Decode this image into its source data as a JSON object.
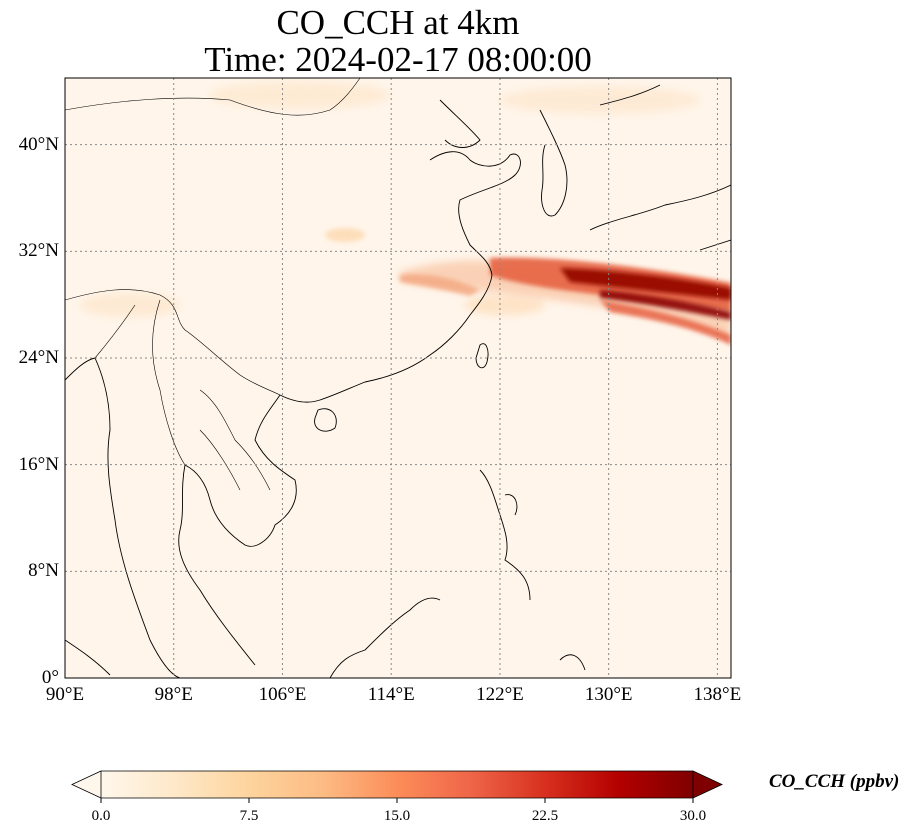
{
  "title": {
    "line1": "CO_CCH at 4km",
    "line2": "Time: 2024-02-17 08:00:00"
  },
  "map": {
    "lon_range": [
      90,
      139
    ],
    "lat_range": [
      0,
      45
    ],
    "gridlines": "dotted",
    "lon_ticks": [
      {
        "value": 90,
        "label": "90°E"
      },
      {
        "value": 98,
        "label": "98°E"
      },
      {
        "value": 106,
        "label": "106°E"
      },
      {
        "value": 114,
        "label": "114°E"
      },
      {
        "value": 122,
        "label": "122°E"
      },
      {
        "value": 130,
        "label": "130°E"
      },
      {
        "value": 138,
        "label": "138°E"
      }
    ],
    "lat_ticks": [
      {
        "value": 0,
        "label": "0°"
      },
      {
        "value": 8,
        "label": "8°N"
      },
      {
        "value": 16,
        "label": "16°N"
      },
      {
        "value": 24,
        "label": "24°N"
      },
      {
        "value": 32,
        "label": "32°N"
      },
      {
        "value": 40,
        "label": "40°N"
      }
    ],
    "background_color": "#fff5ea",
    "coastline_color": "#000000"
  },
  "colorbar": {
    "label": "CO_CCH (ppbv)",
    "min": 0,
    "max": 30,
    "extend": "both",
    "colormap": "OrRd",
    "colors": [
      "#fff7ec",
      "#fee8c8",
      "#fdd49e",
      "#fdbb84",
      "#fc8d59",
      "#ef6548",
      "#d7301f",
      "#b30000",
      "#7f0000"
    ],
    "ticks": [
      {
        "value": 0,
        "label": "0.0"
      },
      {
        "value": 7.5,
        "label": "7.5"
      },
      {
        "value": 15,
        "label": "15.0"
      },
      {
        "value": 22.5,
        "label": "22.5"
      },
      {
        "value": 30,
        "label": "30.0"
      }
    ]
  }
}
